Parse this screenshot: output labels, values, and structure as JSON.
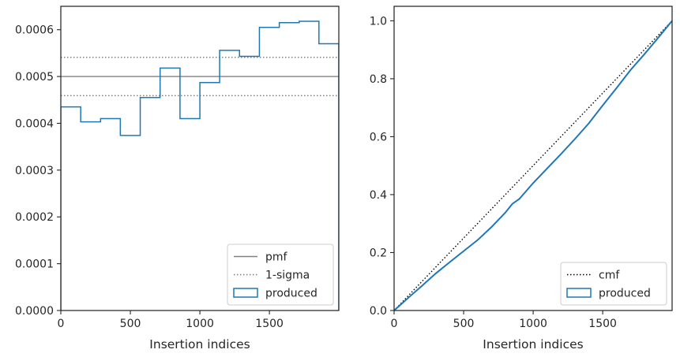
{
  "chart_data": [
    {
      "type": "step",
      "xlabel": "Insertion indices",
      "ylabel": "",
      "xlim": [
        0,
        1999
      ],
      "ylim": [
        0,
        0.00065
      ],
      "xticks": [
        0,
        500,
        1000,
        1500
      ],
      "xtick_labels": [
        "0",
        "500",
        "1000",
        "1500"
      ],
      "yticks": [
        0,
        0.0001,
        0.0002,
        0.0003,
        0.0004,
        0.0005,
        0.0006
      ],
      "ytick_labels": [
        "0.0000",
        "0.0001",
        "0.0002",
        "0.0003",
        "0.0004",
        "0.0005",
        "0.0006"
      ],
      "legend_position": "lower right",
      "series": [
        {
          "name": "pmf",
          "style": "solid",
          "color": "#808080",
          "y": 0.0005
        },
        {
          "name": "1-sigma",
          "style": "dotted",
          "color": "#808080",
          "y": [
            0.000459,
            0.000541
          ]
        },
        {
          "name": "produced",
          "style": "step",
          "color": "#1f77b4",
          "bin_edges": [
            0,
            143,
            286,
            428,
            571,
            714,
            857,
            1000,
            1142,
            1285,
            1428,
            1571,
            1714,
            1856,
            1999
          ],
          "values": [
            0.000435,
            0.000403,
            0.00041,
            0.000374,
            0.000455,
            0.000518,
            0.00041,
            0.000487,
            0.000556,
            0.000543,
            0.000605,
            0.000615,
            0.000618,
            0.00057
          ]
        }
      ]
    },
    {
      "type": "line",
      "xlabel": "Insertion indices",
      "ylabel": "",
      "xlim": [
        0,
        1999
      ],
      "ylim": [
        0,
        1.05
      ],
      "xticks": [
        0,
        500,
        1000,
        1500
      ],
      "xtick_labels": [
        "0",
        "500",
        "1000",
        "1500"
      ],
      "yticks": [
        0,
        0.2,
        0.4,
        0.6,
        0.8,
        1.0
      ],
      "ytick_labels": [
        "0.0",
        "0.2",
        "0.4",
        "0.6",
        "0.8",
        "1.0"
      ],
      "legend_position": "lower right",
      "series": [
        {
          "name": "cmf",
          "style": "dotted",
          "color": "#000000",
          "x": [
            0,
            1999
          ],
          "y": [
            0,
            1.0
          ]
        },
        {
          "name": "produced",
          "style": "step",
          "color": "#1f77b4",
          "x": [
            0,
            100,
            200,
            300,
            400,
            500,
            600,
            700,
            800,
            850,
            900,
            1000,
            1100,
            1200,
            1300,
            1400,
            1500,
            1600,
            1700,
            1800,
            1900,
            1999
          ],
          "y": [
            0,
            0.043,
            0.085,
            0.128,
            0.167,
            0.205,
            0.243,
            0.288,
            0.338,
            0.368,
            0.385,
            0.44,
            0.49,
            0.54,
            0.592,
            0.646,
            0.708,
            0.768,
            0.83,
            0.885,
            0.942,
            1.0
          ]
        }
      ]
    }
  ]
}
